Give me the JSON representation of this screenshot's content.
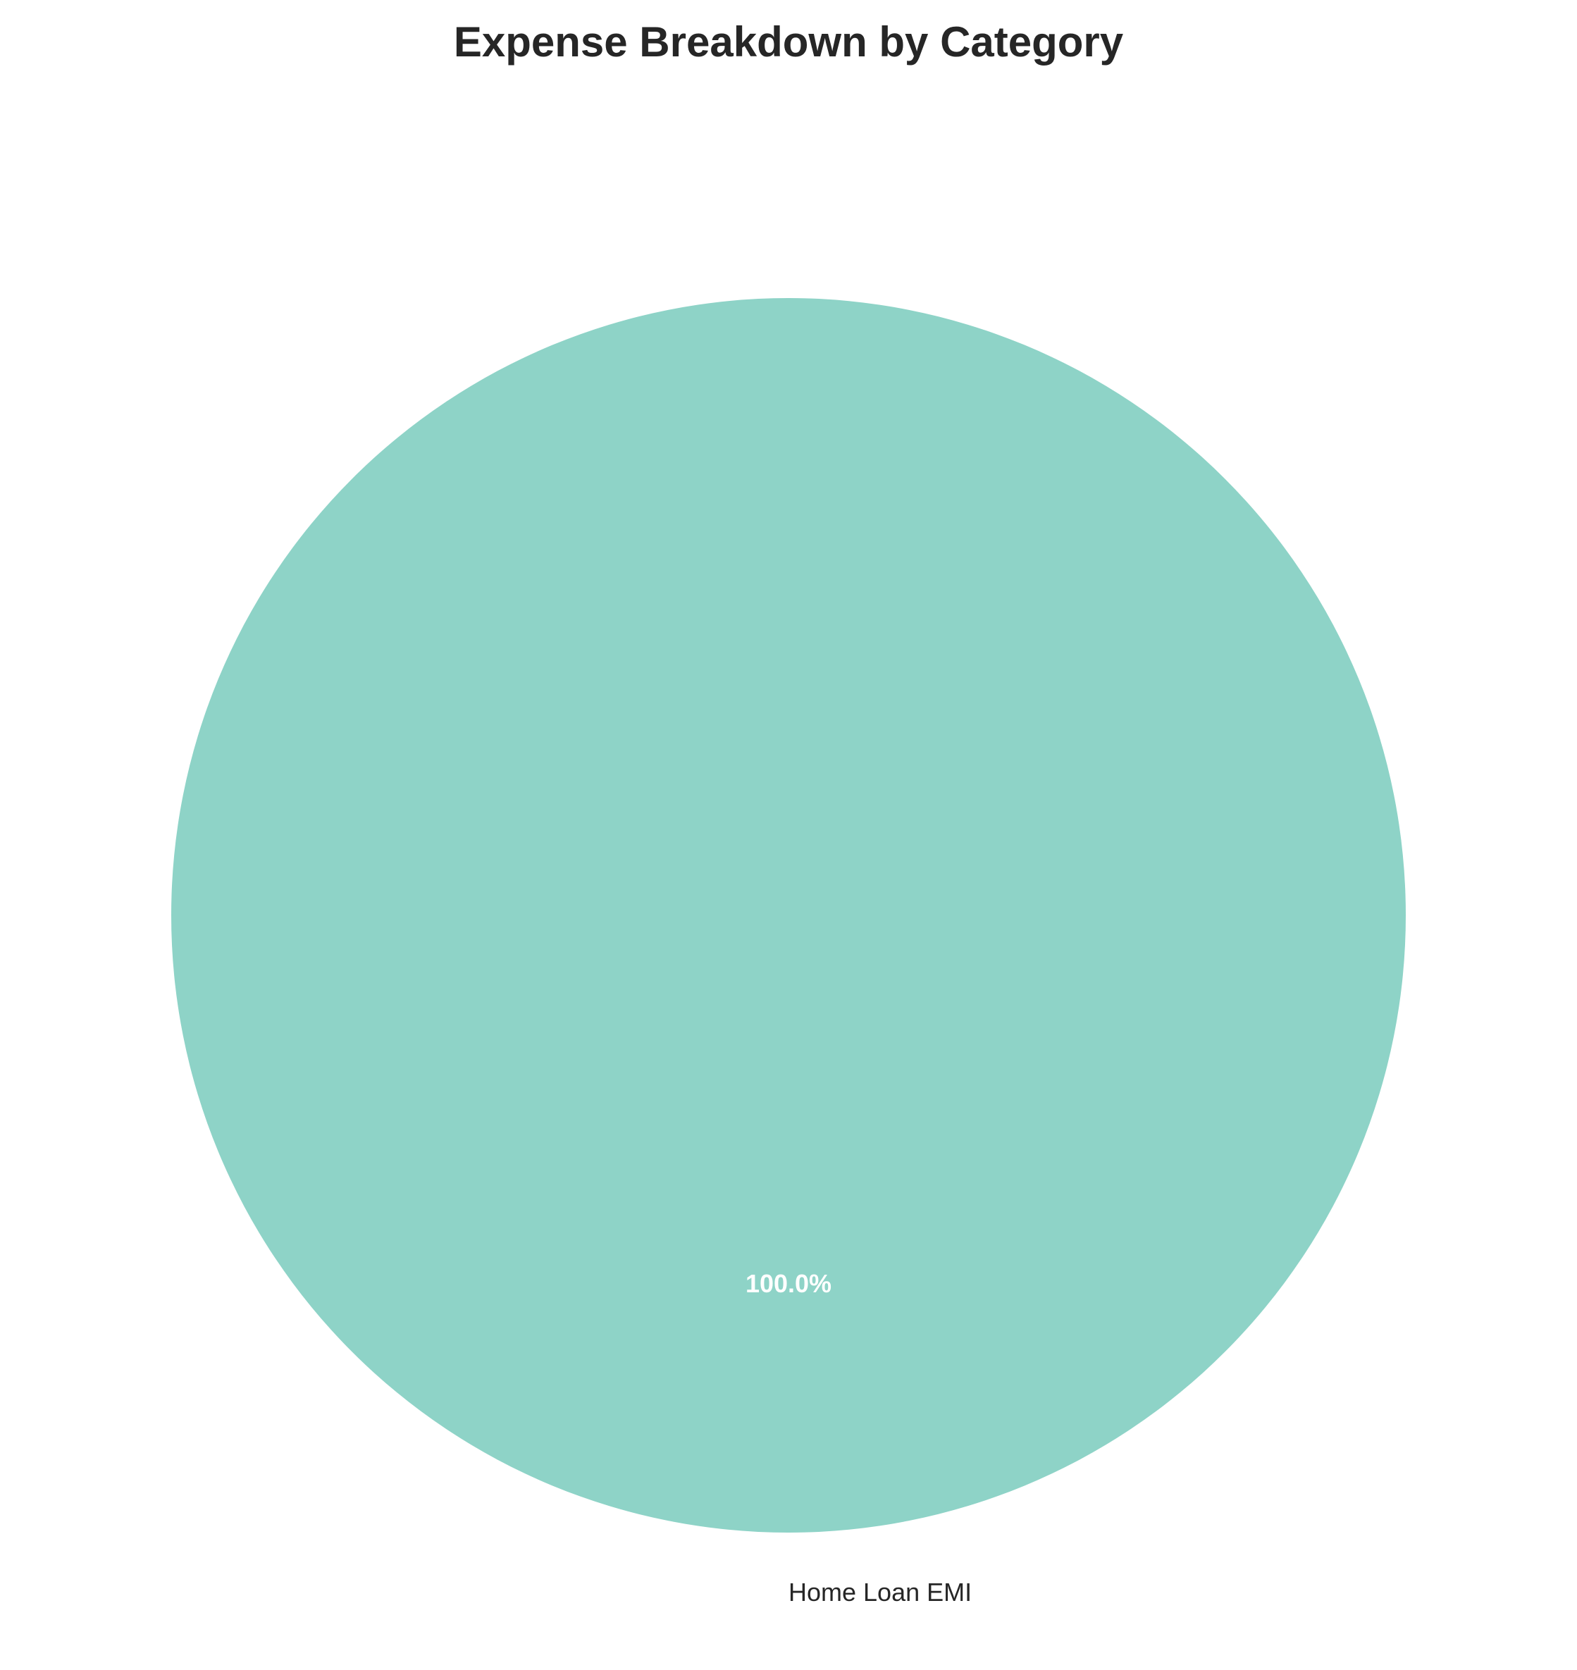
{
  "chart_data": {
    "type": "pie",
    "title": "Expense Breakdown by Category",
    "categories": [
      "Home Loan EMI"
    ],
    "values": [
      100.0
    ],
    "percent_labels": [
      "100.0%"
    ],
    "colors": [
      "#8ed3c7"
    ],
    "legend": "none",
    "grid": false
  }
}
